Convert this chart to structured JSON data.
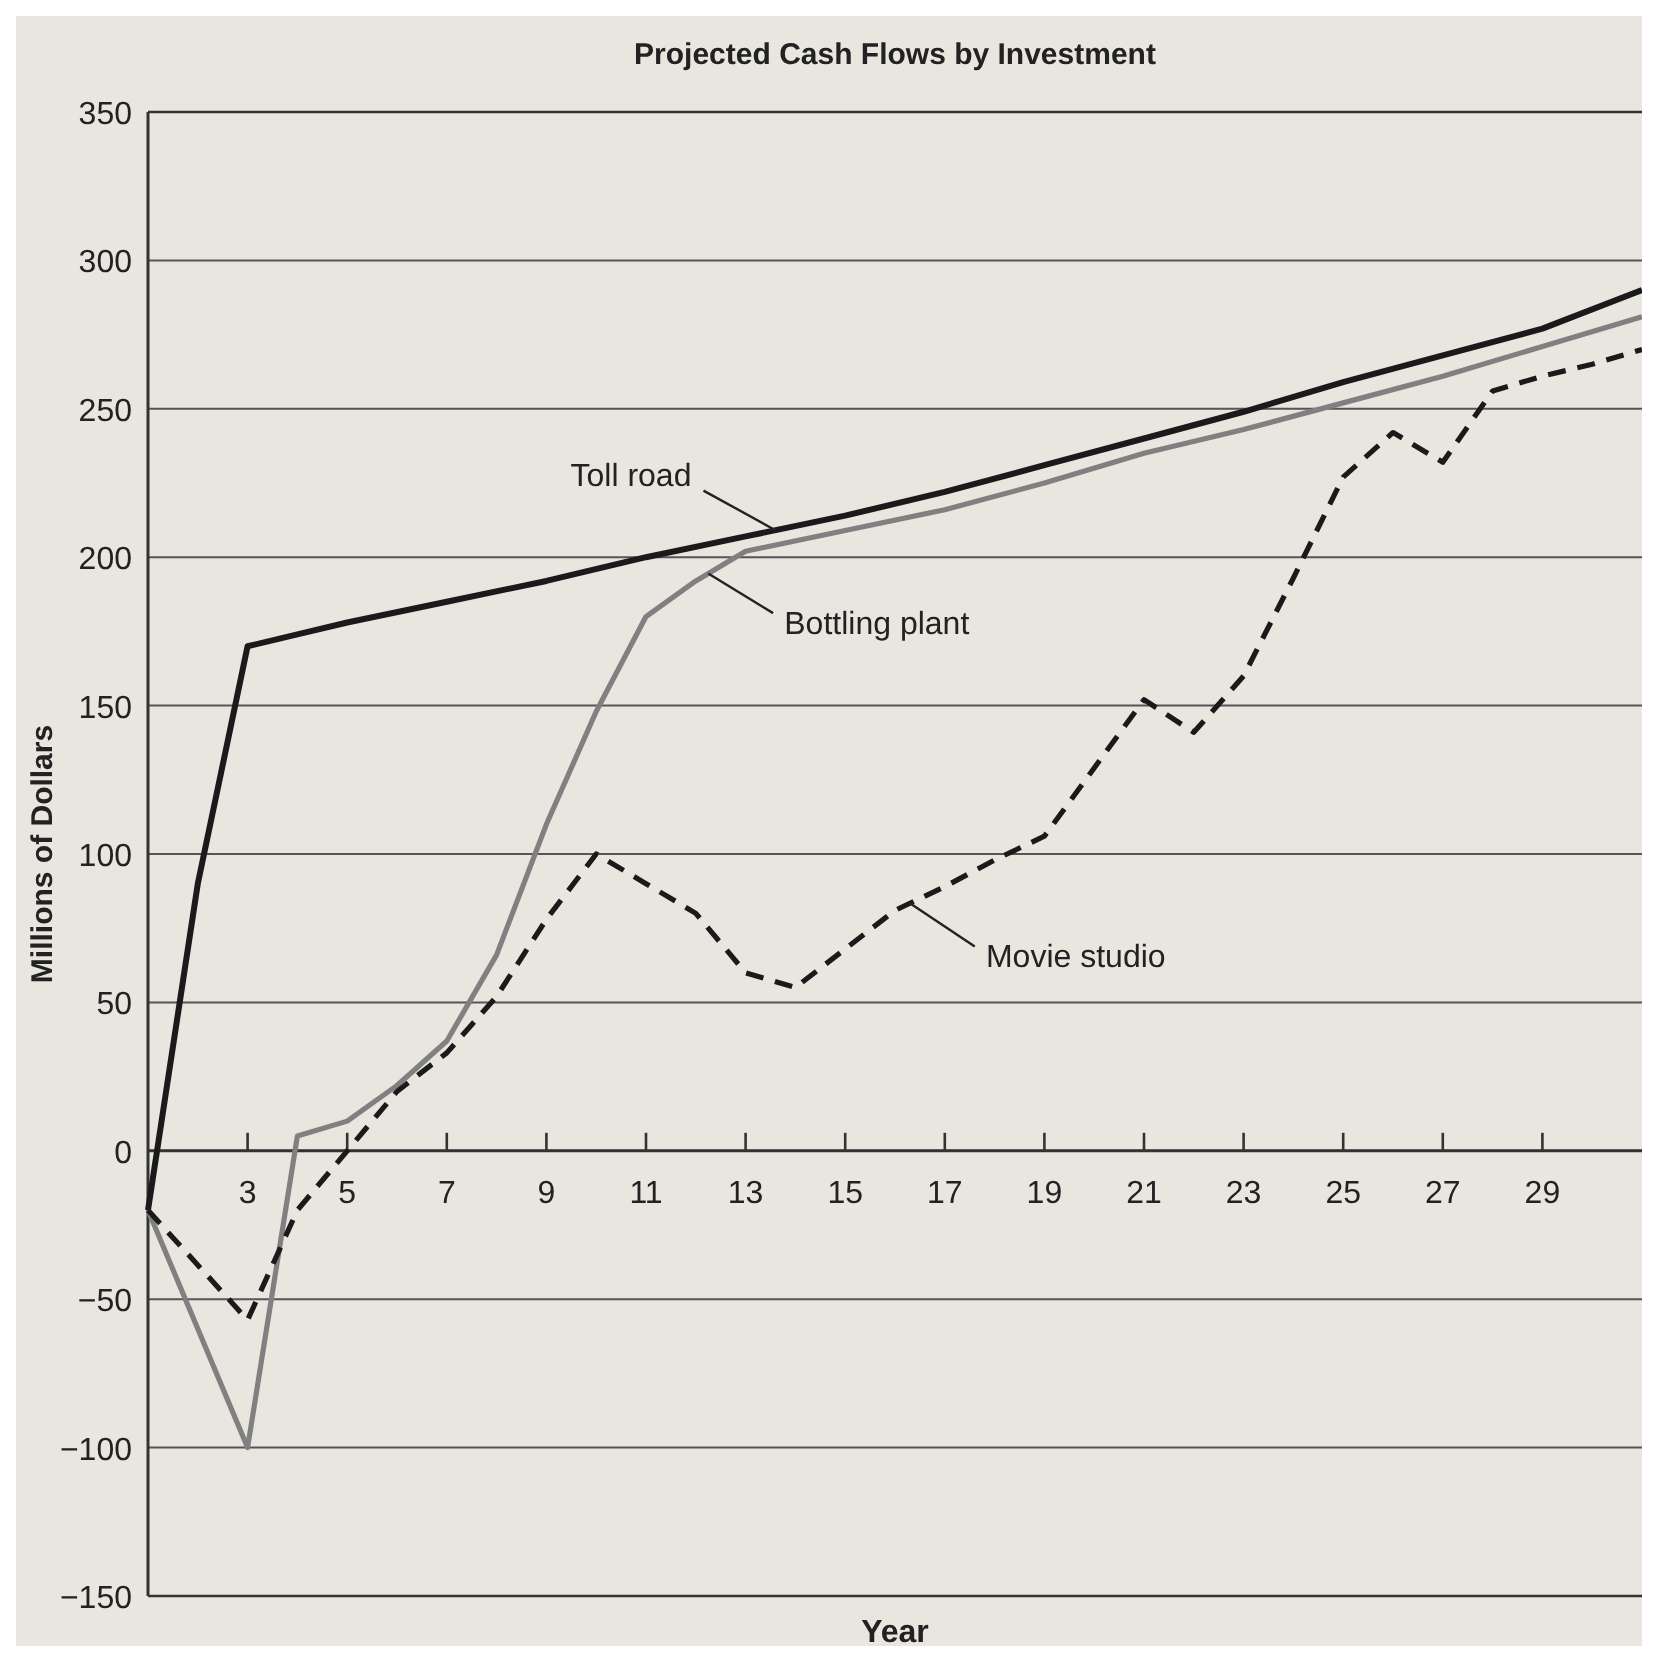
{
  "chart_data": {
    "type": "line",
    "title": "Projected Cash Flows by Investment",
    "xlabel": "Year",
    "ylabel": "Millions of Dollars",
    "xlim": [
      1,
      31
    ],
    "xticks": [
      3,
      5,
      7,
      9,
      11,
      13,
      15,
      17,
      19,
      21,
      23,
      25,
      27,
      29
    ],
    "ylim": [
      -150,
      350
    ],
    "yticks": [
      -150,
      -100,
      -50,
      0,
      50,
      100,
      150,
      200,
      250,
      300,
      350
    ],
    "grid": "y",
    "legend": false,
    "marker": "none",
    "series": [
      {
        "name": "Toll road",
        "color": "#1a1a1a",
        "line_style": "solid",
        "x": [
          1,
          2,
          3,
          4,
          5,
          7,
          9,
          11,
          13,
          15,
          17,
          19,
          21,
          23,
          25,
          27,
          29,
          31
        ],
        "values": [
          -20,
          90,
          170,
          174,
          178,
          185,
          192,
          200,
          207,
          214,
          222,
          231,
          240,
          249,
          259,
          268,
          277,
          290
        ]
      },
      {
        "name": "Bottling plant",
        "color": "#808080",
        "line_style": "solid",
        "x": [
          1,
          3,
          4,
          5,
          6,
          7,
          8,
          9,
          10,
          11,
          12,
          13,
          15,
          17,
          19,
          21,
          23,
          25,
          27,
          29,
          31
        ],
        "values": [
          -20,
          -100,
          5,
          10,
          22,
          37,
          66,
          110,
          148,
          180,
          192,
          202,
          209,
          216,
          225,
          235,
          243,
          252,
          261,
          271,
          281
        ]
      },
      {
        "name": "Movie studio",
        "color": "#1a1a1a",
        "line_style": "dashed",
        "x": [
          1,
          3,
          4,
          5,
          6,
          7,
          8,
          9,
          10,
          11,
          12,
          13,
          14,
          15,
          16,
          17,
          18,
          19,
          20,
          21,
          22,
          23,
          24,
          25,
          26,
          27,
          28,
          29,
          30,
          31
        ],
        "values": [
          -20,
          -57,
          -20,
          0,
          20,
          33,
          52,
          78,
          100,
          90,
          80,
          60,
          55,
          68,
          81,
          89,
          98,
          106,
          129,
          152,
          141,
          160,
          193,
          227,
          242,
          232,
          256,
          261,
          265,
          270
        ]
      }
    ]
  }
}
